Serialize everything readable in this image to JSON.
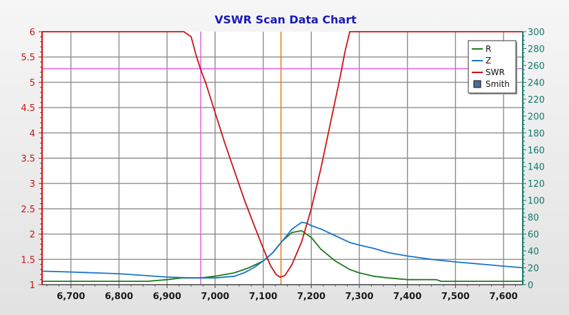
{
  "chart_data": {
    "type": "line",
    "title": "VSWR Scan Data Chart",
    "xlabel": "",
    "ylabel_left": "",
    "ylabel_right": "",
    "xlim": [
      6640,
      7640
    ],
    "ylim_left": [
      1,
      6
    ],
    "ylim_right": [
      0,
      300
    ],
    "grid": true,
    "legend_position": "top-right",
    "x_ticks": [
      "6,700",
      "6,800",
      "6,900",
      "7,000",
      "7,100",
      "7,200",
      "7,300",
      "7,400",
      "7,500",
      "7,600"
    ],
    "x_tick_values": [
      6700,
      6800,
      6900,
      7000,
      7100,
      7200,
      7300,
      7400,
      7500,
      7600
    ],
    "y_left_ticks": [
      "1",
      "1.5",
      "2",
      "2.5",
      "3",
      "3.5",
      "4",
      "4.5",
      "5",
      "5.5",
      "6"
    ],
    "y_left_tick_values": [
      1,
      1.5,
      2,
      2.5,
      3,
      3.5,
      4,
      4.5,
      5,
      5.5,
      6
    ],
    "y_right_ticks": [
      "0",
      "20",
      "40",
      "60",
      "80",
      "100",
      "120",
      "140",
      "160",
      "180",
      "200",
      "220",
      "240",
      "260",
      "280",
      "300"
    ],
    "y_right_tick_values": [
      0,
      20,
      40,
      60,
      80,
      100,
      120,
      140,
      160,
      180,
      200,
      220,
      240,
      260,
      280,
      300
    ],
    "markers": {
      "vertical": [
        {
          "x": 6970,
          "color": "#e060e0"
        },
        {
          "x": 7137,
          "color": "#ee7711"
        }
      ],
      "horizontal": [
        {
          "y": 5.27,
          "axis": "left",
          "color": "#e060e0"
        }
      ]
    },
    "series": [
      {
        "name": "R",
        "axis": "right",
        "color": "#1a7a1a",
        "x": [
          6640,
          6700,
          6800,
          6860,
          6900,
          6930,
          6970,
          7000,
          7040,
          7070,
          7100,
          7120,
          7140,
          7160,
          7180,
          7200,
          7220,
          7250,
          7280,
          7300,
          7330,
          7360,
          7400,
          7460,
          7470,
          7500,
          7600,
          7640
        ],
        "y": [
          4,
          4,
          4,
          4,
          6,
          8,
          8,
          10,
          14,
          20,
          28,
          38,
          52,
          62,
          64,
          56,
          42,
          28,
          18,
          14,
          10,
          8,
          6,
          6,
          4,
          4,
          4,
          4
        ]
      },
      {
        "name": "Z",
        "axis": "right",
        "color": "#1573cc",
        "x": [
          6640,
          6700,
          6750,
          6800,
          6850,
          6900,
          6950,
          7000,
          7040,
          7060,
          7080,
          7100,
          7120,
          7140,
          7160,
          7180,
          7190,
          7200,
          7220,
          7250,
          7280,
          7300,
          7330,
          7360,
          7400,
          7450,
          7500,
          7560,
          7600,
          7640
        ],
        "y": [
          16,
          15,
          14,
          13,
          11,
          9,
          8,
          8,
          10,
          14,
          20,
          28,
          38,
          52,
          66,
          74,
          73,
          70,
          66,
          58,
          50,
          47,
          43,
          38,
          34,
          30,
          27,
          24,
          22,
          20
        ]
      },
      {
        "name": "SWR",
        "axis": "left",
        "color": "#cc1111",
        "x": [
          6640,
          6935,
          6950,
          6960,
          6970,
          6980,
          7000,
          7020,
          7040,
          7060,
          7080,
          7100,
          7115,
          7127,
          7135,
          7145,
          7160,
          7180,
          7200,
          7220,
          7240,
          7260,
          7270,
          7280,
          7300,
          7640
        ],
        "y": [
          6,
          6,
          5.9,
          5.55,
          5.25,
          5.0,
          4.4,
          3.8,
          3.25,
          2.7,
          2.2,
          1.72,
          1.38,
          1.2,
          1.15,
          1.18,
          1.4,
          1.85,
          2.5,
          3.3,
          4.2,
          5.1,
          5.6,
          6,
          6,
          6
        ]
      },
      {
        "name": "Smith",
        "axis": "right",
        "color": "#4a6a9a",
        "x": [],
        "y": []
      }
    ]
  }
}
